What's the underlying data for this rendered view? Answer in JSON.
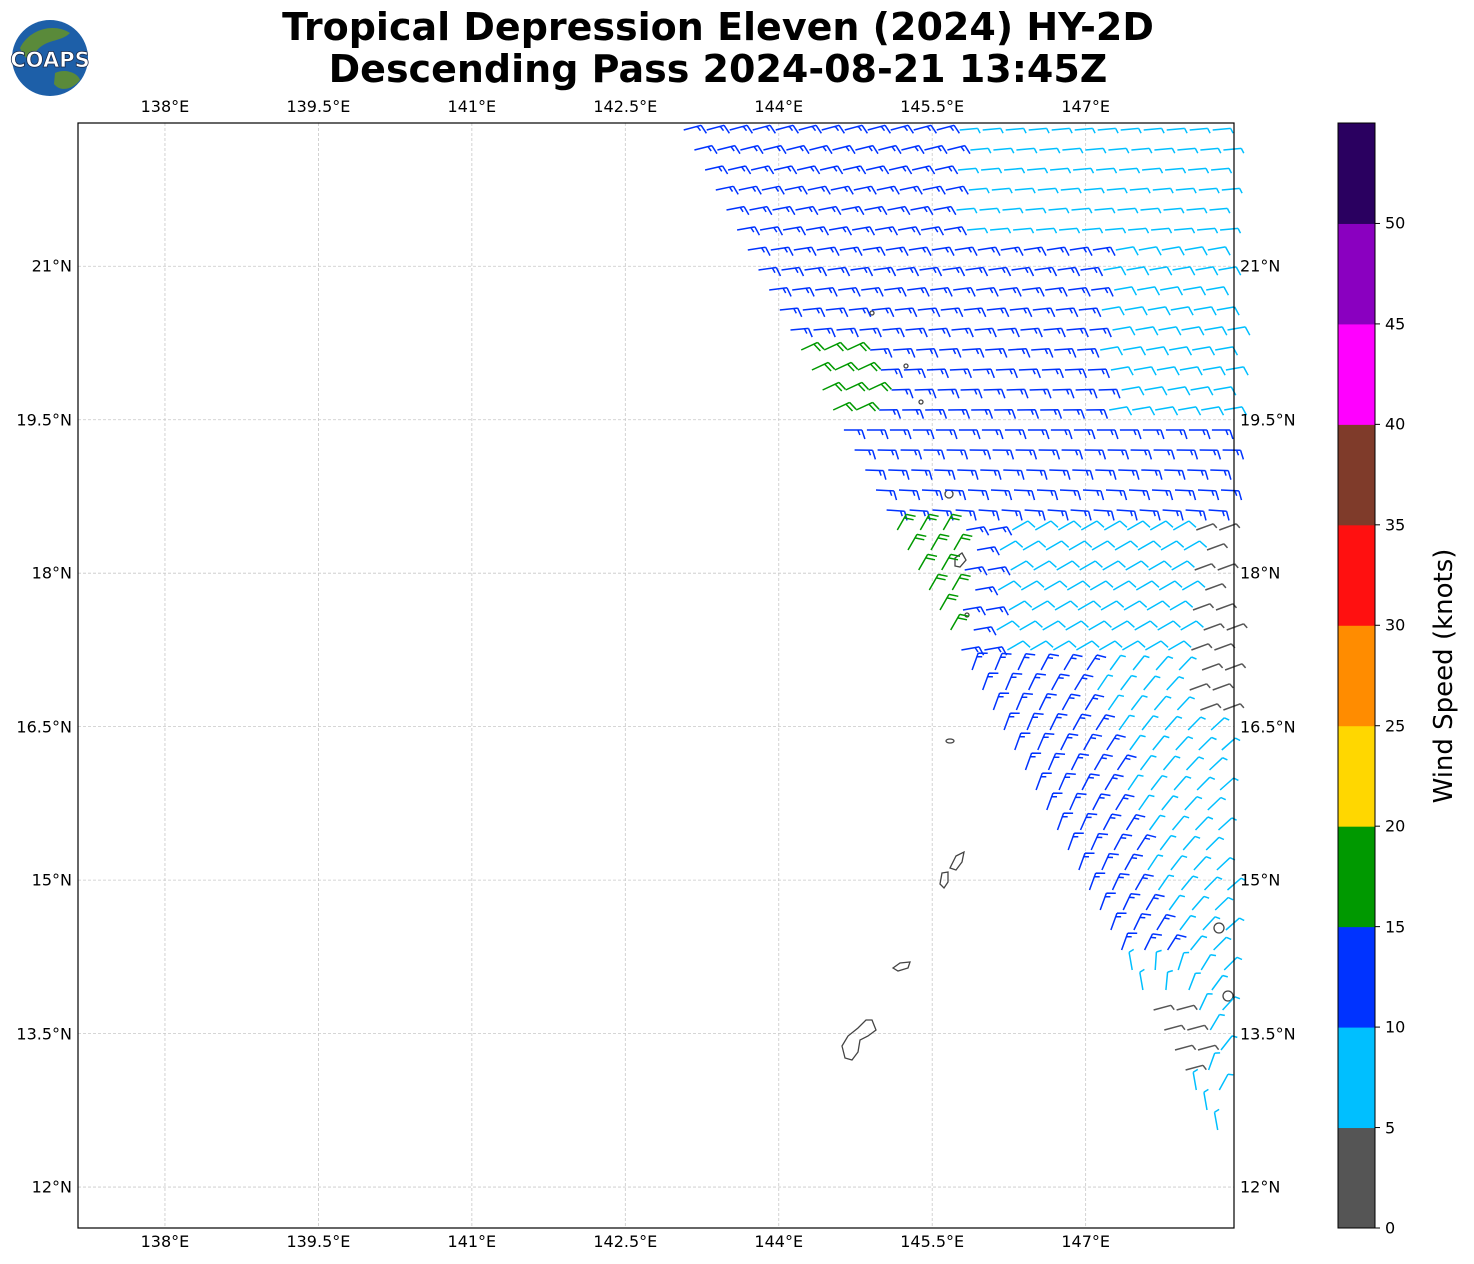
{
  "title_line1": "Tropical Depression Eleven (2024) HY-2D",
  "title_line2": "Descending Pass 2024-08-21 13:45Z",
  "logo_text": "COAPS",
  "x_ticks": [
    "138°E",
    "139.5°E",
    "141°E",
    "142.5°E",
    "144°E",
    "145.5°E",
    "147°E"
  ],
  "y_ticks": [
    "21°N",
    "19.5°N",
    "18°N",
    "16.5°N",
    "15°N",
    "13.5°N",
    "12°N"
  ],
  "colorbar": {
    "label": "Wind Speed (knots)",
    "ticks": [
      "0",
      "5",
      "10",
      "15",
      "20",
      "25",
      "30",
      "35",
      "40",
      "45",
      "50"
    ],
    "colors": [
      "#555555",
      "#00bfff",
      "#0033ff",
      "#009900",
      "#ffd700",
      "#ff8c00",
      "#ff1010",
      "#7f3b2a",
      "#ff00ff",
      "#8a00c0",
      "#2a0060"
    ]
  },
  "chart_data": {
    "type": "map",
    "projection": "plate carree",
    "lon_range": [
      137.15,
      148.45
    ],
    "lat_range": [
      11.6,
      22.4
    ],
    "grid": true,
    "swath": "scatterometer wind barbs, descending pass, eastern part of map",
    "wind_speed_bins_knots": [
      [
        0,
        5
      ],
      [
        5,
        10
      ],
      [
        10,
        15
      ],
      [
        15,
        20
      ],
      [
        20,
        25
      ],
      [
        25,
        30
      ],
      [
        30,
        35
      ],
      [
        35,
        40
      ],
      [
        40,
        45
      ],
      [
        45,
        50
      ],
      [
        50,
        55
      ]
    ]
  }
}
